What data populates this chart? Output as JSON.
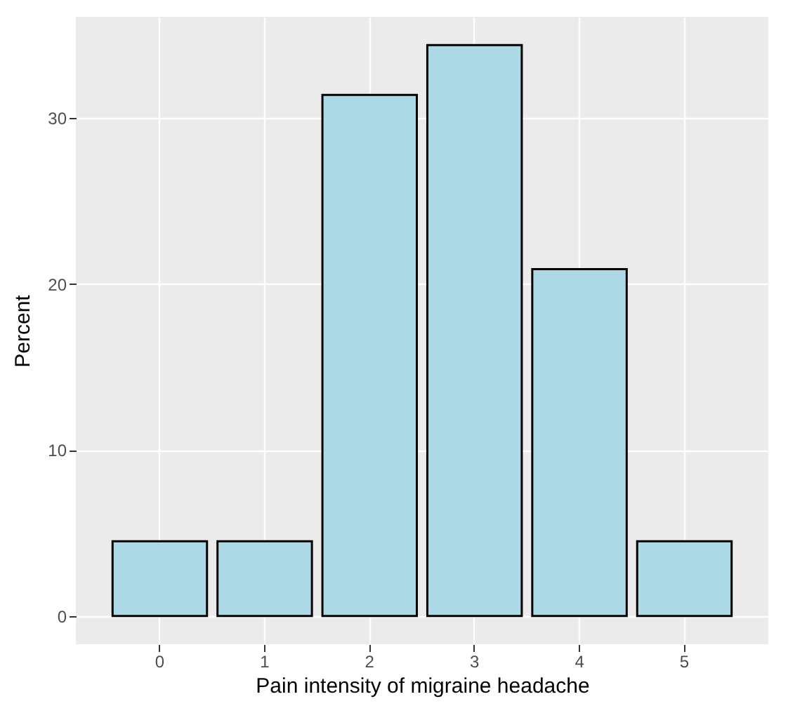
{
  "chart_data": {
    "type": "bar",
    "xlabel": "Pain intensity of migraine headache",
    "ylabel": "Percent",
    "categories": [
      "0",
      "1",
      "2",
      "3",
      "4",
      "5"
    ],
    "values": [
      4.5,
      4.5,
      31.4,
      34.4,
      20.9,
      4.5
    ],
    "color": "#add8e6",
    "ylim": [
      -1.7,
      36.1
    ],
    "yticks": [
      0,
      10,
      20,
      30
    ],
    "grid": true
  }
}
